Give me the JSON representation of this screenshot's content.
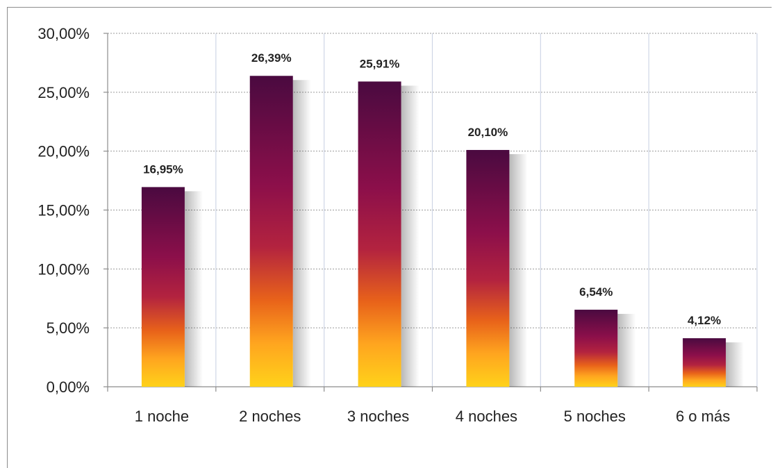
{
  "chart_data": {
    "type": "bar",
    "title": "",
    "xlabel": "",
    "ylabel": "",
    "categories": [
      "1 noche",
      "2 noches",
      "3 noches",
      "4 noches",
      "5 noches",
      "6 o más"
    ],
    "values": [
      16.95,
      26.39,
      25.91,
      20.1,
      6.54,
      4.12
    ],
    "value_labels": [
      "16,95%",
      "26,39%",
      "25,91%",
      "20,10%",
      "6,54%",
      "4,12%"
    ],
    "ylim": [
      0,
      30
    ],
    "yticks": [
      0,
      5,
      10,
      15,
      20,
      25,
      30
    ],
    "ytick_labels": [
      "0,00%",
      "5,00%",
      "10,00%",
      "15,00%",
      "20,00%",
      "25,00%",
      "30,00%"
    ],
    "grid": true,
    "legend": "none",
    "bar_gradient": [
      "#4a0a40",
      "#8c0f4a",
      "#b3233f",
      "#e8621a",
      "#ffa51f",
      "#ffd21a"
    ]
  }
}
